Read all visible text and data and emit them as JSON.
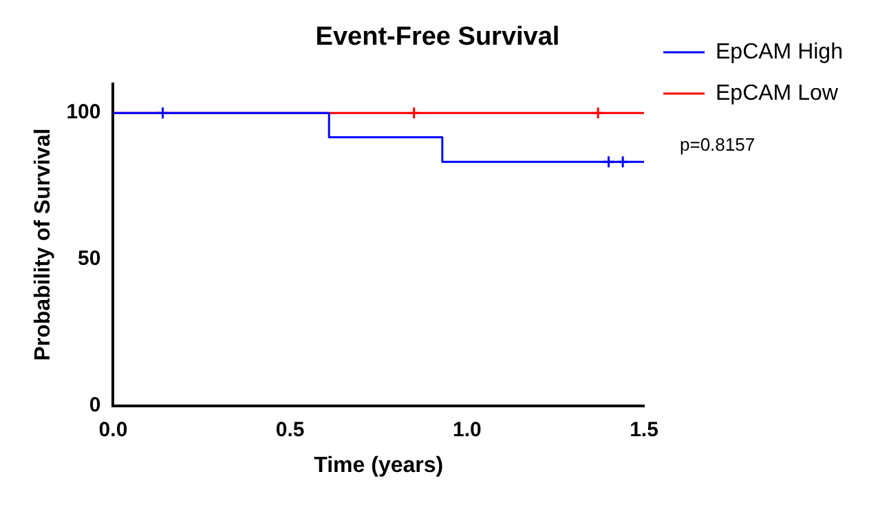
{
  "chart_data": {
    "type": "step",
    "title": "Event-Free Survival",
    "xlabel": "Time (years)",
    "ylabel": "Probability of Survival",
    "xlim": [
      0,
      1.5
    ],
    "xticks": [
      {
        "value": 0,
        "label": "0.0"
      },
      {
        "value": 0.5,
        "label": "0.5"
      },
      {
        "value": 1,
        "label": "1.0"
      },
      1.5
    ],
    "ylim": [
      0,
      110
    ],
    "yticks": [
      0,
      50,
      100
    ],
    "grid": false,
    "legend": "top right",
    "marker": "none",
    "line_style": "solid",
    "annotations": [
      "p=0.8157"
    ],
    "series": [
      {
        "name": "EpCAM High",
        "color": "#0000ff",
        "x": [
          0,
          0.61,
          0.93,
          1.5
        ],
        "values": [
          100,
          91.7,
          83.3,
          83.3
        ]
      },
      {
        "name": "EpCAM Low",
        "color": "#ff0000",
        "x": [
          0,
          1.5
        ],
        "values": [
          100,
          100
        ]
      },
      {
        "type": "scatter",
        "marker": "cross",
        "color": "#0000ff",
        "x": [
          0.14,
          1.4,
          1.44
        ],
        "values": [
          100,
          83.3,
          83.3
        ]
      },
      {
        "type": "scatter",
        "marker": "cross",
        "color": "#ff0000",
        "x": [
          0.85,
          1.37
        ],
        "values": [
          100,
          100
        ]
      }
    ]
  }
}
